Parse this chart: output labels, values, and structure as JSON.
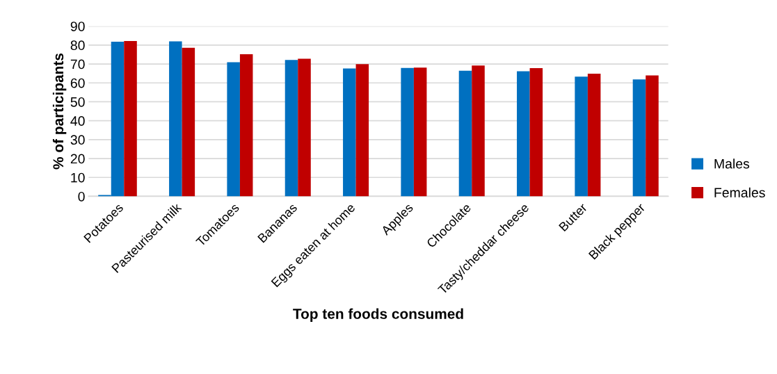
{
  "chart_data": {
    "type": "bar",
    "xlabel": "Top ten foods consumed",
    "ylabel": "% of participants",
    "categories": [
      "Potatoes",
      "Pasteurised milk",
      "Tomatoes",
      "Bananas",
      "Eggs eaten at home",
      "Apples",
      "Chocolate",
      "Tasty/cheddar cheese",
      "Butter",
      "Black pepper"
    ],
    "series": [
      {
        "color": "#0070c0",
        "values": [
          0.7,
          null,
          null,
          null,
          null,
          null,
          null,
          null,
          null,
          null
        ]
      },
      {
        "name": "Males",
        "color": "#0070c0",
        "values": [
          81.8,
          82.0,
          70.9,
          72.1,
          67.6,
          67.9,
          66.4,
          66.2,
          63.3,
          61.8
        ]
      },
      {
        "name": "Females",
        "color": "#c00000",
        "values": [
          82.2,
          78.6,
          75.2,
          72.8,
          69.9,
          68.1,
          69.2,
          67.8,
          64.9,
          64.0
        ]
      }
    ],
    "ylim": [
      0,
      90
    ],
    "yticks": [
      0,
      10,
      20,
      30,
      40,
      50,
      60,
      70,
      80,
      90
    ],
    "grid": "y",
    "legend": "right"
  }
}
